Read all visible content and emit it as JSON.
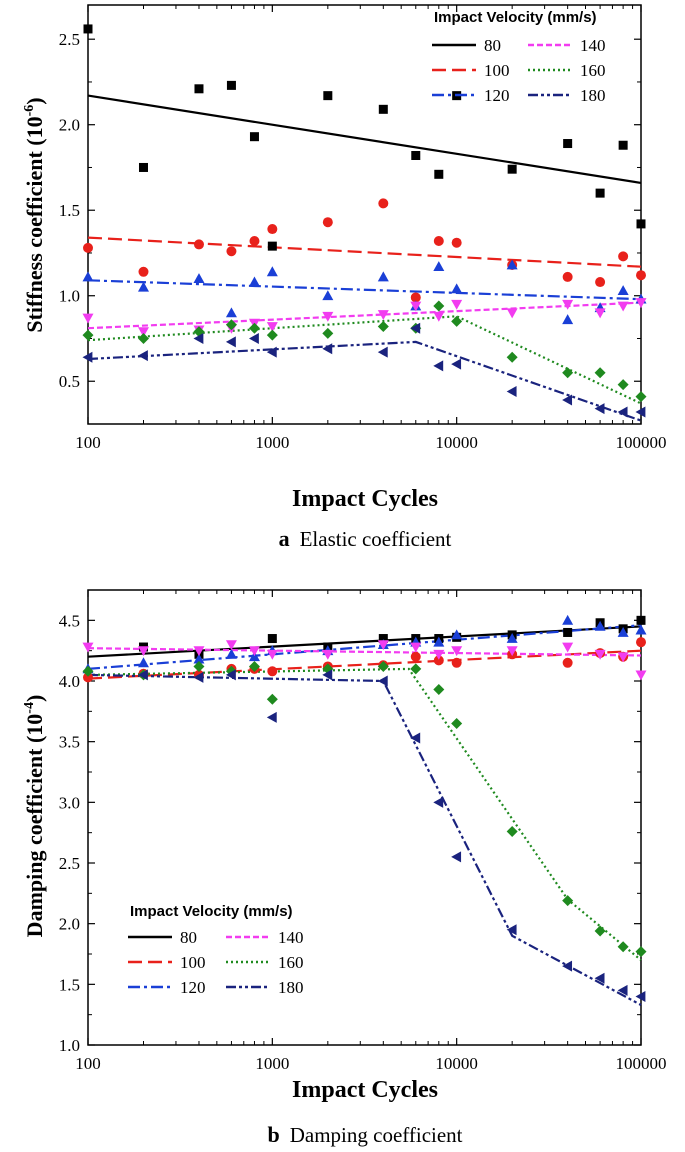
{
  "chart_data": [
    {
      "type": "scatter",
      "panel": "a",
      "caption_letter": "a",
      "caption_text": "Elastic coefficient",
      "xlabel": "Impact Cycles",
      "ylabel": "Stiffness coefficient (10",
      "ylabel_exp": "-6",
      "ylabel_close": ")",
      "xscale": "log",
      "xlim": [
        100,
        100000
      ],
      "ylim": [
        0.25,
        2.7
      ],
      "xticks": [
        100,
        1000,
        10000,
        100000
      ],
      "xtick_labels": [
        "100",
        "1000",
        "10000",
        "100000"
      ],
      "yticks": [
        0.5,
        1.0,
        1.5,
        2.0,
        2.5
      ],
      "ytick_labels": [
        "0.5",
        "1.0",
        "1.5",
        "2.0",
        "2.5"
      ],
      "legend_title": "Impact Velocity (mm/s)",
      "legend_position": "top-right",
      "series": [
        {
          "name": "80",
          "color": "#000000",
          "marker": "square",
          "dash": "solid",
          "x": [
            100,
            200,
            400,
            600,
            800,
            1000,
            2000,
            4000,
            6000,
            8000,
            10000,
            20000,
            40000,
            60000,
            80000,
            100000
          ],
          "y": [
            2.56,
            1.75,
            2.21,
            2.23,
            1.93,
            1.29,
            2.17,
            2.09,
            1.82,
            1.71,
            2.17,
            1.74,
            1.89,
            1.6,
            1.88,
            1.42
          ],
          "fit_x": [
            100,
            100000
          ],
          "fit_y": [
            2.17,
            1.66
          ]
        },
        {
          "name": "100",
          "color": "#e8211b",
          "marker": "circle",
          "dash": "dashed",
          "x": [
            100,
            200,
            400,
            600,
            800,
            1000,
            2000,
            4000,
            6000,
            8000,
            10000,
            20000,
            40000,
            60000,
            80000,
            100000
          ],
          "y": [
            1.28,
            1.14,
            1.3,
            1.26,
            1.32,
            1.39,
            1.43,
            1.54,
            0.99,
            1.32,
            1.31,
            1.18,
            1.11,
            1.08,
            1.23,
            1.12
          ],
          "fit_x": [
            100,
            100000
          ],
          "fit_y": [
            1.34,
            1.17
          ]
        },
        {
          "name": "120",
          "color": "#1a3fd6",
          "marker": "triangle-up",
          "dash": "dashdot",
          "x": [
            100,
            200,
            400,
            600,
            800,
            1000,
            2000,
            4000,
            6000,
            8000,
            10000,
            20000,
            40000,
            60000,
            80000,
            100000
          ],
          "y": [
            1.11,
            1.05,
            1.1,
            0.9,
            1.08,
            1.14,
            1.0,
            1.11,
            0.94,
            1.17,
            1.04,
            1.18,
            0.86,
            0.93,
            1.03,
            0.98
          ],
          "fit_x": [
            100,
            100000
          ],
          "fit_y": [
            1.09,
            0.98
          ]
        },
        {
          "name": "140",
          "color": "#f23cf0",
          "marker": "triangle-down",
          "dash": "short-dash",
          "x": [
            100,
            200,
            400,
            600,
            800,
            1000,
            2000,
            4000,
            6000,
            8000,
            10000,
            20000,
            40000,
            60000,
            80000,
            100000
          ],
          "y": [
            0.87,
            0.79,
            0.8,
            0.81,
            0.84,
            0.82,
            0.88,
            0.89,
            0.94,
            0.88,
            0.95,
            0.9,
            0.95,
            0.9,
            0.94,
            0.96
          ],
          "fit_x": [
            100,
            100000
          ],
          "fit_y": [
            0.81,
            0.96
          ]
        },
        {
          "name": "160",
          "color": "#1f8a1f",
          "marker": "diamond",
          "dash": "dotted",
          "x": [
            100,
            200,
            400,
            600,
            800,
            1000,
            2000,
            4000,
            6000,
            8000,
            10000,
            20000,
            40000,
            60000,
            80000,
            100000
          ],
          "y": [
            0.77,
            0.75,
            0.79,
            0.83,
            0.81,
            0.77,
            0.78,
            0.82,
            0.81,
            0.94,
            0.85,
            0.64,
            0.55,
            0.55,
            0.48,
            0.41
          ],
          "fit_x": [
            100,
            10000,
            100000
          ],
          "fit_y": [
            0.74,
            0.88,
            0.37
          ]
        },
        {
          "name": "180",
          "color": "#1a237e",
          "marker": "triangle-left",
          "dash": "dashdotdot",
          "x": [
            100,
            200,
            400,
            600,
            800,
            1000,
            2000,
            4000,
            6000,
            8000,
            10000,
            20000,
            40000,
            60000,
            80000,
            100000
          ],
          "y": [
            0.64,
            0.65,
            0.75,
            0.73,
            0.75,
            0.67,
            0.69,
            0.67,
            0.81,
            0.59,
            0.6,
            0.44,
            0.39,
            0.34,
            0.32,
            0.32
          ],
          "fit_x": [
            100,
            6000,
            100000
          ],
          "fit_y": [
            0.63,
            0.73,
            0.27
          ]
        }
      ]
    },
    {
      "type": "scatter",
      "panel": "b",
      "caption_letter": "b",
      "caption_text": "Damping coefficient",
      "xlabel": "Impact Cycles",
      "ylabel": "Damping coefficient (10",
      "ylabel_exp": "-4",
      "ylabel_close": ")",
      "xscale": "log",
      "xlim": [
        100,
        100000
      ],
      "ylim": [
        1.0,
        4.75
      ],
      "xticks": [
        100,
        1000,
        10000,
        100000
      ],
      "xtick_labels": [
        "100",
        "1000",
        "10000",
        "100000"
      ],
      "yticks": [
        1.0,
        1.5,
        2.0,
        2.5,
        3.0,
        3.5,
        4.0,
        4.5
      ],
      "ytick_labels": [
        "1.0",
        "1.5",
        "2.0",
        "2.5",
        "3.0",
        "3.5",
        "4.0",
        "4.5"
      ],
      "legend_title": "Impact Velocity (mm/s)",
      "legend_position": "bottom-left",
      "series": [
        {
          "name": "80",
          "color": "#000000",
          "marker": "square",
          "dash": "solid",
          "x": [
            200,
            400,
            1000,
            2000,
            4000,
            6000,
            8000,
            10000,
            20000,
            40000,
            60000,
            80000,
            100000
          ],
          "y": [
            4.28,
            4.22,
            4.35,
            4.28,
            4.35,
            4.35,
            4.35,
            4.36,
            4.38,
            4.4,
            4.48,
            4.43,
            4.5
          ],
          "fit_x": [
            100,
            100000
          ],
          "fit_y": [
            4.2,
            4.45
          ]
        },
        {
          "name": "100",
          "color": "#e8211b",
          "marker": "circle",
          "dash": "dashed",
          "x": [
            100,
            200,
            400,
            600,
            800,
            1000,
            2000,
            4000,
            6000,
            8000,
            10000,
            20000,
            40000,
            60000,
            80000,
            100000
          ],
          "y": [
            4.03,
            4.06,
            4.05,
            4.1,
            4.1,
            4.08,
            4.12,
            4.13,
            4.2,
            4.17,
            4.15,
            4.22,
            4.15,
            4.23,
            4.2,
            4.32
          ],
          "fit_x": [
            100,
            100000
          ],
          "fit_y": [
            4.02,
            4.25
          ]
        },
        {
          "name": "120",
          "color": "#1a3fd6",
          "marker": "triangle-up",
          "dash": "dashdot",
          "x": [
            100,
            200,
            400,
            600,
            800,
            1000,
            2000,
            4000,
            6000,
            8000,
            10000,
            20000,
            40000,
            60000,
            80000,
            100000
          ],
          "y": [
            4.1,
            4.15,
            4.18,
            4.22,
            4.2,
            4.25,
            4.25,
            4.3,
            4.32,
            4.32,
            4.38,
            4.35,
            4.5,
            4.45,
            4.4,
            4.42
          ],
          "fit_x": [
            100,
            100000
          ],
          "fit_y": [
            4.1,
            4.46
          ]
        },
        {
          "name": "140",
          "color": "#f23cf0",
          "marker": "triangle-down",
          "dash": "short-dash",
          "x": [
            100,
            200,
            400,
            600,
            800,
            1000,
            2000,
            4000,
            6000,
            8000,
            10000,
            20000,
            40000,
            60000,
            80000,
            100000
          ],
          "y": [
            4.28,
            4.25,
            4.25,
            4.3,
            4.25,
            4.22,
            4.22,
            4.3,
            4.28,
            4.22,
            4.25,
            4.25,
            4.28,
            4.22,
            4.2,
            4.05
          ],
          "fit_x": [
            100,
            100000
          ],
          "fit_y": [
            4.27,
            4.21
          ]
        },
        {
          "name": "160",
          "color": "#1f8a1f",
          "marker": "diamond",
          "dash": "dotted",
          "x": [
            100,
            200,
            400,
            600,
            800,
            1000,
            2000,
            4000,
            6000,
            8000,
            10000,
            20000,
            40000,
            60000,
            80000,
            100000
          ],
          "y": [
            4.08,
            4.05,
            4.12,
            4.08,
            4.12,
            3.85,
            4.1,
            4.12,
            4.1,
            3.93,
            3.65,
            2.76,
            2.19,
            1.94,
            1.81,
            1.77
          ],
          "fit_x": [
            100,
            5500,
            40000,
            100000
          ],
          "fit_y": [
            4.05,
            4.1,
            2.2,
            1.7
          ]
        },
        {
          "name": "180",
          "color": "#1a237e",
          "marker": "triangle-left",
          "dash": "dashdotdot",
          "x": [
            200,
            400,
            600,
            1000,
            2000,
            4000,
            6000,
            8000,
            10000,
            20000,
            40000,
            60000,
            80000,
            100000
          ],
          "y": [
            4.05,
            4.03,
            4.05,
            3.7,
            4.05,
            4.0,
            3.53,
            3.0,
            2.55,
            1.95,
            1.65,
            1.55,
            1.45,
            1.4
          ],
          "fit_x": [
            100,
            4000,
            20000,
            100000
          ],
          "fit_y": [
            4.05,
            4.0,
            1.9,
            1.33
          ]
        }
      ]
    }
  ]
}
